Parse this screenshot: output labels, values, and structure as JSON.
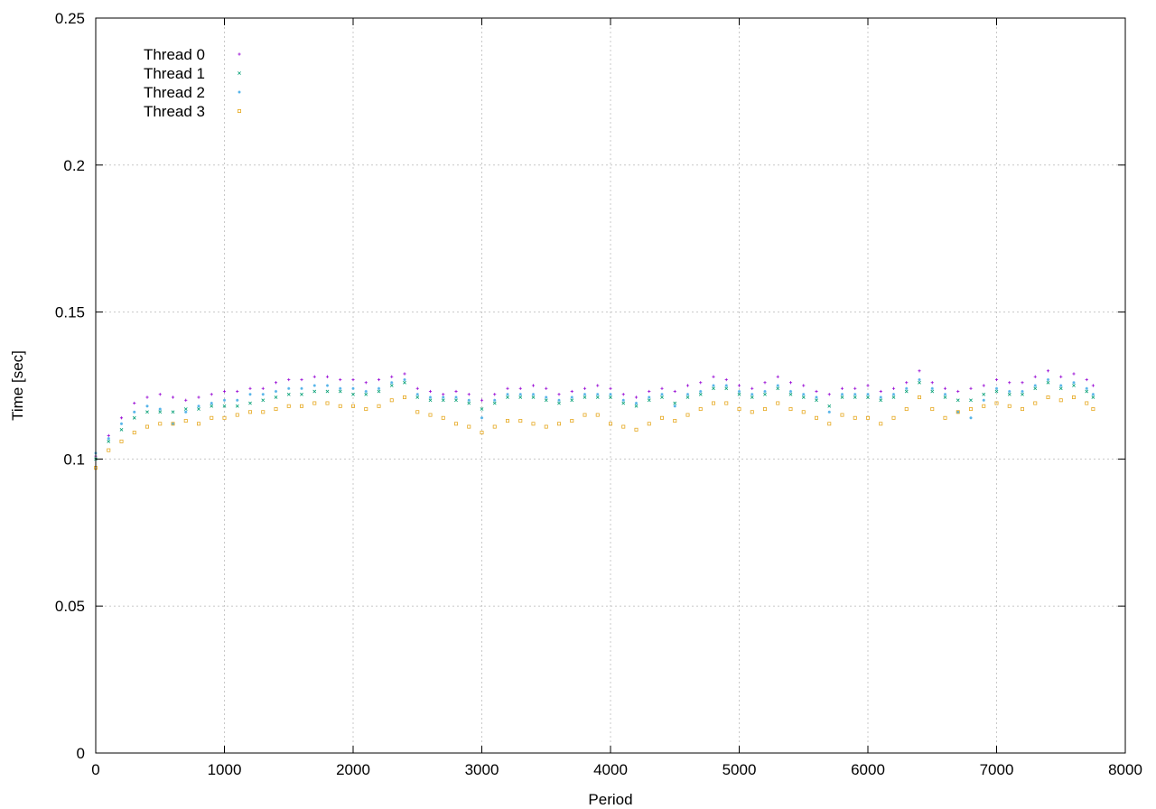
{
  "chart_data": {
    "type": "scatter",
    "title": "",
    "xlabel": "Period",
    "ylabel": "Time [sec]",
    "xlim": [
      0,
      8000
    ],
    "ylim": [
      0,
      0.25
    ],
    "x_ticks": [
      0,
      1000,
      2000,
      3000,
      4000,
      5000,
      6000,
      7000,
      8000
    ],
    "y_ticks": [
      0,
      0.05,
      0.1,
      0.15,
      0.2,
      0.25
    ],
    "x_tick_labels": [
      "0",
      "1000",
      "2000",
      "3000",
      "4000",
      "5000",
      "6000",
      "7000",
      "8000"
    ],
    "y_tick_labels": [
      "0",
      "0.05",
      "0.1",
      "0.15",
      "0.2",
      "0.25"
    ],
    "grid": true,
    "legend_position": "top-left",
    "series": [
      {
        "name": "Thread 0",
        "color": "#9400d3",
        "marker": "plus",
        "x": [
          0,
          100,
          200,
          300,
          400,
          500,
          600,
          700,
          800,
          900,
          1000,
          1100,
          1200,
          1300,
          1400,
          1500,
          1600,
          1700,
          1800,
          1900,
          2000,
          2100,
          2200,
          2300,
          2400,
          2500,
          2600,
          2700,
          2800,
          2900,
          3000,
          3100,
          3200,
          3300,
          3400,
          3500,
          3600,
          3700,
          3800,
          3900,
          4000,
          4100,
          4200,
          4300,
          4400,
          4500,
          4600,
          4700,
          4800,
          4900,
          5000,
          5100,
          5200,
          5300,
          5400,
          5500,
          5600,
          5700,
          5800,
          5900,
          6000,
          6100,
          6200,
          6300,
          6400,
          6500,
          6600,
          6700,
          6800,
          6900,
          7000,
          7100,
          7200,
          7300,
          7400,
          7500,
          7600,
          7700,
          7750
        ],
        "y": [
          0.101,
          0.108,
          0.114,
          0.119,
          0.121,
          0.122,
          0.121,
          0.12,
          0.121,
          0.122,
          0.123,
          0.123,
          0.124,
          0.124,
          0.126,
          0.127,
          0.127,
          0.128,
          0.128,
          0.127,
          0.127,
          0.126,
          0.127,
          0.128,
          0.129,
          0.124,
          0.123,
          0.122,
          0.123,
          0.122,
          0.12,
          0.122,
          0.124,
          0.124,
          0.125,
          0.124,
          0.122,
          0.123,
          0.124,
          0.125,
          0.124,
          0.122,
          0.121,
          0.123,
          0.124,
          0.123,
          0.125,
          0.126,
          0.128,
          0.127,
          0.125,
          0.124,
          0.126,
          0.128,
          0.126,
          0.125,
          0.123,
          0.122,
          0.124,
          0.124,
          0.125,
          0.123,
          0.124,
          0.126,
          0.13,
          0.126,
          0.124,
          0.123,
          0.124,
          0.125,
          0.127,
          0.126,
          0.126,
          0.128,
          0.13,
          0.128,
          0.129,
          0.127,
          0.125
        ]
      },
      {
        "name": "Thread 1",
        "color": "#009e73",
        "marker": "cross",
        "x": [
          0,
          100,
          200,
          300,
          400,
          500,
          600,
          700,
          800,
          900,
          1000,
          1100,
          1200,
          1300,
          1400,
          1500,
          1600,
          1700,
          1800,
          1900,
          2000,
          2100,
          2200,
          2300,
          2400,
          2500,
          2600,
          2700,
          2800,
          2900,
          3000,
          3100,
          3200,
          3300,
          3400,
          3500,
          3600,
          3700,
          3800,
          3900,
          4000,
          4100,
          4200,
          4300,
          4400,
          4500,
          4600,
          4700,
          4800,
          4900,
          5000,
          5100,
          5200,
          5300,
          5400,
          5500,
          5600,
          5700,
          5800,
          5900,
          6000,
          6100,
          6200,
          6300,
          6400,
          6500,
          6600,
          6700,
          6800,
          6900,
          7000,
          7100,
          7200,
          7300,
          7400,
          7500,
          7600,
          7700,
          7750
        ],
        "y": [
          0.1,
          0.106,
          0.11,
          0.114,
          0.116,
          0.116,
          0.116,
          0.117,
          0.117,
          0.118,
          0.118,
          0.118,
          0.119,
          0.12,
          0.121,
          0.122,
          0.122,
          0.123,
          0.123,
          0.123,
          0.122,
          0.122,
          0.123,
          0.125,
          0.126,
          0.121,
          0.12,
          0.12,
          0.12,
          0.119,
          0.117,
          0.119,
          0.121,
          0.121,
          0.121,
          0.12,
          0.119,
          0.12,
          0.121,
          0.121,
          0.121,
          0.119,
          0.118,
          0.12,
          0.121,
          0.119,
          0.121,
          0.122,
          0.124,
          0.124,
          0.122,
          0.121,
          0.122,
          0.124,
          0.122,
          0.121,
          0.12,
          0.118,
          0.121,
          0.121,
          0.121,
          0.12,
          0.121,
          0.123,
          0.126,
          0.123,
          0.121,
          0.12,
          0.12,
          0.122,
          0.123,
          0.122,
          0.122,
          0.124,
          0.126,
          0.124,
          0.125,
          0.123,
          0.121
        ]
      },
      {
        "name": "Thread 2",
        "color": "#56b4e9",
        "marker": "star",
        "x": [
          0,
          100,
          200,
          300,
          400,
          500,
          600,
          700,
          800,
          900,
          1000,
          1100,
          1200,
          1300,
          1400,
          1500,
          1600,
          1700,
          1800,
          1900,
          2000,
          2100,
          2200,
          2300,
          2400,
          2500,
          2600,
          2700,
          2800,
          2900,
          3000,
          3100,
          3200,
          3300,
          3400,
          3500,
          3600,
          3700,
          3800,
          3900,
          4000,
          4100,
          4200,
          4300,
          4400,
          4500,
          4600,
          4700,
          4800,
          4900,
          5000,
          5100,
          5200,
          5300,
          5400,
          5500,
          5600,
          5700,
          5800,
          5900,
          6000,
          6100,
          6200,
          6300,
          6400,
          6500,
          6600,
          6700,
          6800,
          6900,
          7000,
          7100,
          7200,
          7300,
          7400,
          7500,
          7600,
          7700,
          7750
        ],
        "y": [
          0.102,
          0.107,
          0.112,
          0.116,
          0.118,
          0.117,
          0.112,
          0.116,
          0.118,
          0.119,
          0.12,
          0.12,
          0.122,
          0.122,
          0.123,
          0.124,
          0.124,
          0.125,
          0.125,
          0.124,
          0.124,
          0.123,
          0.124,
          0.126,
          0.127,
          0.122,
          0.121,
          0.121,
          0.121,
          0.12,
          0.114,
          0.12,
          0.122,
          0.122,
          0.122,
          0.121,
          0.12,
          0.121,
          0.122,
          0.122,
          0.122,
          0.12,
          0.119,
          0.121,
          0.122,
          0.118,
          0.122,
          0.123,
          0.125,
          0.125,
          0.123,
          0.122,
          0.123,
          0.125,
          0.123,
          0.122,
          0.121,
          0.116,
          0.122,
          0.122,
          0.122,
          0.121,
          0.122,
          0.124,
          0.127,
          0.124,
          0.122,
          0.116,
          0.114,
          0.12,
          0.124,
          0.123,
          0.123,
          0.125,
          0.127,
          0.125,
          0.126,
          0.124,
          0.122
        ]
      },
      {
        "name": "Thread 3",
        "color": "#e6a820",
        "marker": "box",
        "x": [
          0,
          100,
          200,
          300,
          400,
          500,
          600,
          700,
          800,
          900,
          1000,
          1100,
          1200,
          1300,
          1400,
          1500,
          1600,
          1700,
          1800,
          1900,
          2000,
          2100,
          2200,
          2300,
          2400,
          2500,
          2600,
          2700,
          2800,
          2900,
          3000,
          3100,
          3200,
          3300,
          3400,
          3500,
          3600,
          3700,
          3800,
          3900,
          4000,
          4100,
          4200,
          4300,
          4400,
          4500,
          4600,
          4700,
          4800,
          4900,
          5000,
          5100,
          5200,
          5300,
          5400,
          5500,
          5600,
          5700,
          5800,
          5900,
          6000,
          6100,
          6200,
          6300,
          6400,
          6500,
          6600,
          6700,
          6800,
          6900,
          7000,
          7100,
          7200,
          7300,
          7400,
          7500,
          7600,
          7700,
          7750
        ],
        "y": [
          0.097,
          0.103,
          0.106,
          0.109,
          0.111,
          0.112,
          0.112,
          0.113,
          0.112,
          0.114,
          0.114,
          0.115,
          0.116,
          0.116,
          0.117,
          0.118,
          0.118,
          0.119,
          0.119,
          0.118,
          0.118,
          0.117,
          0.118,
          0.12,
          0.121,
          0.116,
          0.115,
          0.114,
          0.112,
          0.111,
          0.109,
          0.111,
          0.113,
          0.113,
          0.112,
          0.111,
          0.112,
          0.113,
          0.115,
          0.115,
          0.112,
          0.111,
          0.11,
          0.112,
          0.114,
          0.113,
          0.115,
          0.117,
          0.119,
          0.119,
          0.117,
          0.116,
          0.117,
          0.119,
          0.117,
          0.116,
          0.114,
          0.112,
          0.115,
          0.114,
          0.114,
          0.112,
          0.114,
          0.117,
          0.121,
          0.117,
          0.114,
          0.116,
          0.117,
          0.118,
          0.119,
          0.118,
          0.117,
          0.119,
          0.121,
          0.12,
          0.121,
          0.119,
          0.117
        ]
      }
    ]
  }
}
